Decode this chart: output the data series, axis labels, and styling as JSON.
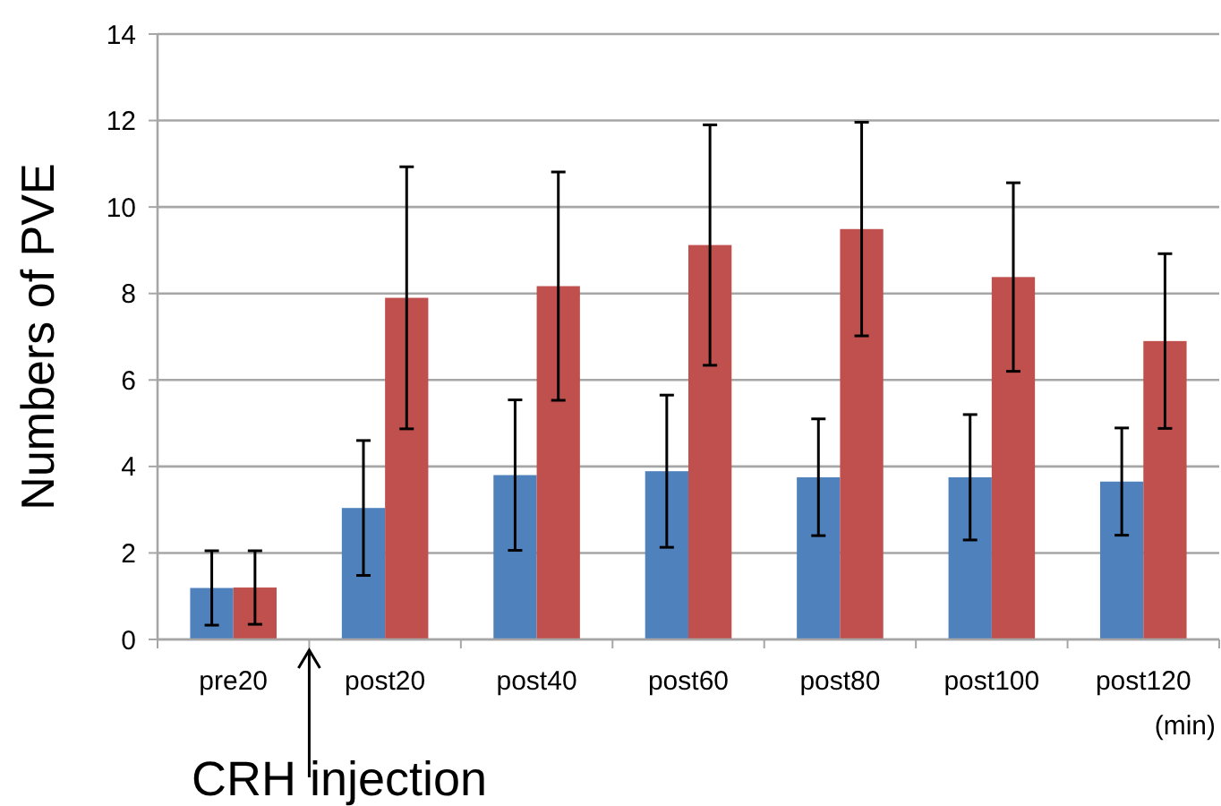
{
  "chart_data": {
    "type": "bar",
    "ylabel": "Numbers of PVE",
    "xlabel": "(min)",
    "categories": [
      "pre20",
      "post20",
      "post40",
      "post60",
      "post80",
      "post100",
      "post120"
    ],
    "series": [
      {
        "color": "#4f81bd",
        "values": [
          1.19,
          3.04,
          3.8,
          3.89,
          3.75,
          3.75,
          3.65
        ],
        "errors": [
          0.86,
          1.56,
          1.74,
          1.76,
          1.35,
          1.45,
          1.24
        ]
      },
      {
        "color": "#c0504d",
        "values": [
          1.2,
          7.9,
          8.17,
          9.12,
          9.49,
          8.38,
          6.9
        ],
        "errors": [
          0.85,
          3.03,
          2.64,
          2.78,
          2.47,
          2.18,
          2.02
        ]
      }
    ],
    "ylim": [
      0,
      14
    ],
    "yticks": [
      0,
      2,
      4,
      6,
      8,
      10,
      12,
      14
    ],
    "grid": "y",
    "annotations": [
      "CRH injection"
    ]
  }
}
